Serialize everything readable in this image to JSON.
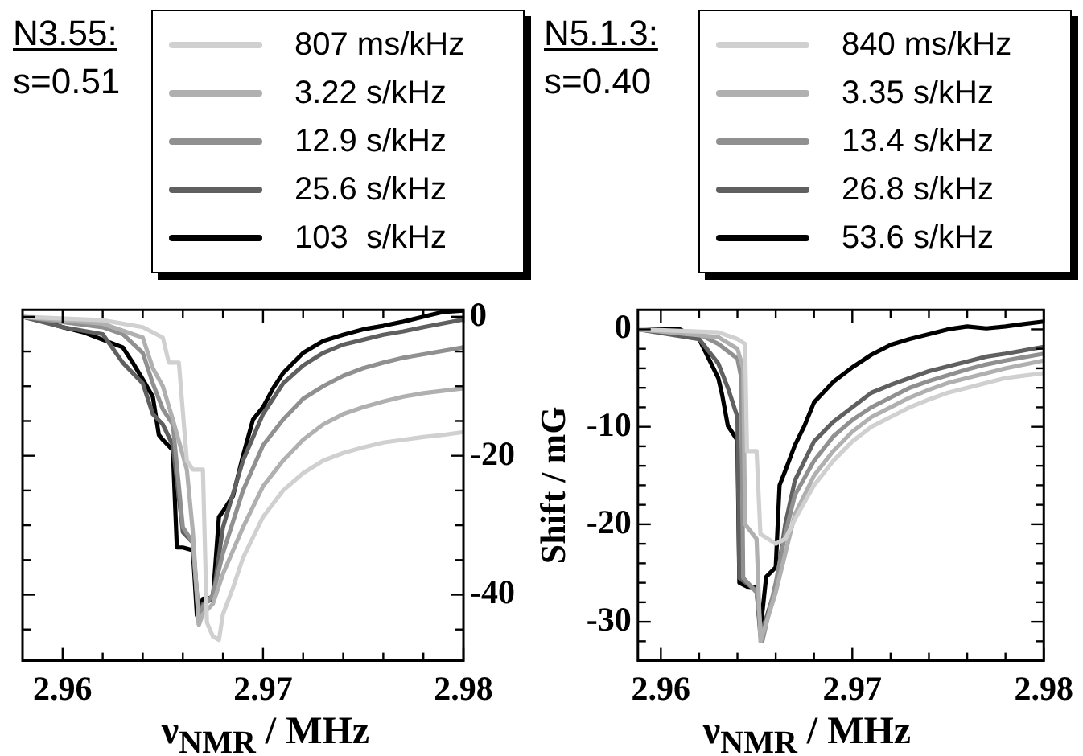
{
  "chart_data": [
    {
      "type": "line",
      "title": "N3.55:",
      "subtitle": "s=0.51",
      "xlabel": "ν$_{NMR}$ / MHz",
      "legend": "top",
      "marker": "none",
      "grid": false,
      "xlim": [
        2.958,
        2.98
      ],
      "xticks": [
        2.96,
        {
          "value": 2.962,
          "label": null
        },
        {
          "value": 2.964,
          "label": null
        },
        {
          "value": 2.966,
          "label": null
        },
        {
          "value": 2.968,
          "label": null
        },
        2.97,
        {
          "value": 2.972,
          "label": null
        },
        {
          "value": 2.974,
          "label": null
        },
        {
          "value": 2.976,
          "label": null
        },
        {
          "value": 2.978,
          "label": null
        },
        2.98
      ],
      "y2lim": [
        -49.5,
        1
      ],
      "y2ticks": [
        {
          "value": -45,
          "label": null
        },
        -40,
        {
          "value": -35,
          "label": null
        },
        {
          "value": -30,
          "label": null
        },
        {
          "value": -25,
          "label": null
        },
        -20,
        {
          "value": -15,
          "label": null
        },
        {
          "value": -10,
          "label": null
        },
        {
          "value": -5,
          "label": null
        },
        0
      ],
      "series": [
        {
          "name": "807 ms/kHz",
          "color": "#d0d0d0",
          "axis": "y2",
          "x": [
            2.958,
            2.962,
            2.964,
            2.965,
            2.9653,
            2.9658,
            2.9662,
            2.9665,
            2.967,
            2.9672,
            2.9675,
            2.9678,
            2.968,
            2.9685,
            2.969,
            2.97,
            2.971,
            2.972,
            2.973,
            2.974,
            2.975,
            2.976,
            2.977,
            2.978,
            2.979,
            2.98
          ],
          "values": [
            0,
            -0.5,
            -1.5,
            -3,
            -6.6,
            -6.6,
            -20.7,
            -22,
            -22,
            -44,
            -46,
            -46.5,
            -42.8,
            -39,
            -34.7,
            -28.8,
            -25,
            -22.5,
            -20.7,
            -19.6,
            -18.8,
            -18.1,
            -17.7,
            -17.3,
            -17,
            -16.6
          ]
        },
        {
          "name": "3.22 s/kHz",
          "color": "#b0b0b0",
          "axis": "y2",
          "x": [
            2.958,
            2.962,
            2.964,
            2.9645,
            2.965,
            2.9655,
            2.9662,
            2.9665,
            2.9668,
            2.967,
            2.9675,
            2.968,
            2.969,
            2.97,
            2.971,
            2.972,
            2.973,
            2.974,
            2.975,
            2.976,
            2.977,
            2.978,
            2.98
          ],
          "values": [
            0,
            -1,
            -3,
            -7.4,
            -10,
            -14.8,
            -22,
            -31,
            -44.3,
            -42.8,
            -41.3,
            -37,
            -30.3,
            -24.4,
            -20.7,
            -17.7,
            -15.5,
            -14,
            -13,
            -12.2,
            -11.5,
            -11,
            -10.3
          ]
        },
        {
          "name": "12.9 s/kHz",
          "color": "#909090",
          "axis": "y2",
          "x": [
            2.958,
            2.962,
            2.963,
            2.964,
            2.9645,
            2.965,
            2.9655,
            2.966,
            2.9665,
            2.9668,
            2.967,
            2.9675,
            2.968,
            2.969,
            2.97,
            2.971,
            2.972,
            2.973,
            2.974,
            2.975,
            2.976,
            2.977,
            2.978,
            2.98
          ],
          "values": [
            0,
            -1.5,
            -2.5,
            -5.2,
            -9.6,
            -13.3,
            -15.5,
            -30.3,
            -32.5,
            -44.3,
            -41.7,
            -40,
            -34,
            -25,
            -18.5,
            -14.8,
            -11.8,
            -10,
            -8.5,
            -7.4,
            -6.6,
            -5.9,
            -5.4,
            -4.4
          ]
        },
        {
          "name": "25.6 s/kHz",
          "color": "#606060",
          "axis": "y2",
          "x": [
            2.958,
            2.96,
            2.962,
            2.963,
            2.964,
            2.9645,
            2.965,
            2.9655,
            2.966,
            2.9665,
            2.9668,
            2.967,
            2.9675,
            2.968,
            2.969,
            2.97,
            2.971,
            2.972,
            2.973,
            2.974,
            2.975,
            2.976,
            2.977,
            2.978,
            2.98
          ],
          "values": [
            0,
            -1.5,
            -2.5,
            -6.6,
            -9.6,
            -14,
            -15.5,
            -18.5,
            -31,
            -32.5,
            -43.5,
            -41.3,
            -40.6,
            -30.3,
            -20.7,
            -14,
            -9.6,
            -7,
            -5.2,
            -4,
            -3.3,
            -2.6,
            -2.1,
            -1.5,
            -0.4
          ]
        },
        {
          "name": "103  s/kHz",
          "color": "#000000",
          "axis": "y2",
          "x": [
            2.958,
            2.959,
            2.96,
            2.961,
            2.962,
            2.963,
            2.9635,
            2.964,
            2.9645,
            2.9648,
            2.965,
            2.9655,
            2.9657,
            2.966,
            2.9665,
            2.9667,
            2.967,
            2.9675,
            2.9678,
            2.968,
            2.9685,
            2.969,
            2.9695,
            2.97,
            2.9705,
            2.971,
            2.972,
            2.973,
            2.974,
            2.975,
            2.976,
            2.977,
            2.978,
            2.979,
            2.98
          ],
          "values": [
            0,
            -0.6,
            -1.5,
            -2.2,
            -3.3,
            -4.4,
            -6.6,
            -9,
            -11.5,
            -17,
            -17.7,
            -19.2,
            -33.2,
            -33.2,
            -33.6,
            -43,
            -40.6,
            -40.4,
            -28.8,
            -28,
            -25.8,
            -20,
            -14.8,
            -13,
            -10.3,
            -8.1,
            -5.2,
            -3.5,
            -2.6,
            -1.8,
            -1.3,
            -0.7,
            0,
            0.7,
            0.9
          ]
        }
      ]
    },
    {
      "type": "line",
      "title": "N5.1.3:",
      "subtitle": "s=0.40",
      "xlabel": "ν$_{NMR}$ / MHz",
      "ylabel": "Shift / mG",
      "legend": "top",
      "marker": "none",
      "grid": false,
      "xlim": [
        2.9588,
        2.98
      ],
      "xticks": [
        2.96,
        {
          "value": 2.962,
          "label": null
        },
        {
          "value": 2.964,
          "label": null
        },
        {
          "value": 2.966,
          "label": null
        },
        {
          "value": 2.968,
          "label": null
        },
        2.97,
        {
          "value": 2.972,
          "label": null
        },
        {
          "value": 2.974,
          "label": null
        },
        {
          "value": 2.976,
          "label": null
        },
        {
          "value": 2.978,
          "label": null
        },
        2.98
      ],
      "ylim": [
        -34,
        2
      ],
      "yticks": [
        {
          "value": -32,
          "label": null
        },
        -30,
        {
          "value": -28,
          "label": null
        },
        {
          "value": -26,
          "label": null
        },
        {
          "value": -24,
          "label": null
        },
        {
          "value": -22,
          "label": null
        },
        -20,
        {
          "value": -18,
          "label": null
        },
        {
          "value": -16,
          "label": null
        },
        {
          "value": -14,
          "label": null
        },
        {
          "value": -12,
          "label": null
        },
        -10,
        {
          "value": -8,
          "label": null
        },
        {
          "value": -6,
          "label": null
        },
        {
          "value": -4,
          "label": null
        },
        {
          "value": -2,
          "label": null
        },
        0
      ],
      "series": [
        {
          "name": "840 ms/kHz",
          "color": "#d0d0d0",
          "x": [
            2.9588,
            2.963,
            2.964,
            2.9644,
            2.9645,
            2.965,
            2.9652,
            2.966,
            2.9665,
            2.967,
            2.968,
            2.969,
            2.97,
            2.971,
            2.972,
            2.973,
            2.974,
            2.975,
            2.976,
            2.977,
            2.978,
            2.98
          ],
          "values": [
            0,
            -0.3,
            -1,
            -1.5,
            -12.5,
            -12.5,
            -21,
            -22,
            -21.5,
            -19.5,
            -16,
            -13.5,
            -11.5,
            -10,
            -9,
            -8,
            -7.2,
            -6.5,
            -6,
            -5.5,
            -5,
            -4.5
          ]
        },
        {
          "name": "3.35 s/kHz",
          "color": "#b0b0b0",
          "x": [
            2.9588,
            2.963,
            2.964,
            2.9643,
            2.9644,
            2.965,
            2.9652,
            2.966,
            2.9665,
            2.967,
            2.968,
            2.969,
            2.97,
            2.971,
            2.972,
            2.973,
            2.974,
            2.975,
            2.976,
            2.977,
            2.978,
            2.98
          ],
          "values": [
            0,
            -0.8,
            -2,
            -4,
            -20,
            -21.5,
            -32,
            -27,
            -23,
            -19,
            -15,
            -12.5,
            -10.5,
            -9,
            -8,
            -7,
            -6.2,
            -5.5,
            -5,
            -4.5,
            -4,
            -3.2
          ]
        },
        {
          "name": "13.4 s/kHz",
          "color": "#909090",
          "x": [
            2.9588,
            2.962,
            2.963,
            2.964,
            2.9642,
            2.9643,
            2.965,
            2.9653,
            2.966,
            2.9665,
            2.967,
            2.968,
            2.969,
            2.97,
            2.971,
            2.972,
            2.973,
            2.974,
            2.975,
            2.976,
            2.977,
            2.978,
            2.98
          ],
          "values": [
            0,
            -0.5,
            -1.5,
            -3,
            -5,
            -25.5,
            -27,
            -32,
            -26,
            -21,
            -17,
            -13.5,
            -11,
            -9.3,
            -8,
            -7,
            -6,
            -5.3,
            -4.7,
            -4.1,
            -3.6,
            -3.2,
            -2.5
          ]
        },
        {
          "name": "26.8 s/kHz",
          "color": "#606060",
          "x": [
            2.9588,
            2.962,
            2.963,
            2.9635,
            2.964,
            2.9641,
            2.965,
            2.9652,
            2.966,
            2.9665,
            2.967,
            2.968,
            2.969,
            2.97,
            2.971,
            2.972,
            2.973,
            2.974,
            2.975,
            2.976,
            2.977,
            2.978,
            2.98
          ],
          "values": [
            0,
            -1,
            -3.5,
            -6,
            -9,
            -25.5,
            -26.8,
            -31.5,
            -26.5,
            -20,
            -15.5,
            -11.5,
            -9.5,
            -8,
            -6.5,
            -5.7,
            -5,
            -4.3,
            -3.8,
            -3.3,
            -2.8,
            -2.5,
            -1.8
          ]
        },
        {
          "name": "53.6 s/kHz",
          "color": "#000000",
          "x": [
            2.9588,
            2.961,
            2.962,
            2.9625,
            2.963,
            2.9632,
            2.9635,
            2.964,
            2.9641,
            2.9645,
            2.965,
            2.9652,
            2.9655,
            2.966,
            2.9662,
            2.9665,
            2.967,
            2.9675,
            2.968,
            2.969,
            2.97,
            2.971,
            2.972,
            2.973,
            2.974,
            2.975,
            2.976,
            2.977,
            2.978,
            2.98
          ],
          "values": [
            0,
            0,
            -1,
            -3,
            -5,
            -6.7,
            -9.9,
            -11.4,
            -26,
            -26.4,
            -26.5,
            -30.9,
            -25.4,
            -24.4,
            -16,
            -14.5,
            -11.9,
            -9.9,
            -7.5,
            -5.4,
            -3.9,
            -2.6,
            -1.6,
            -1,
            -0.5,
            0,
            0.3,
            0.1,
            0.3,
            0.8
          ]
        }
      ]
    }
  ]
}
